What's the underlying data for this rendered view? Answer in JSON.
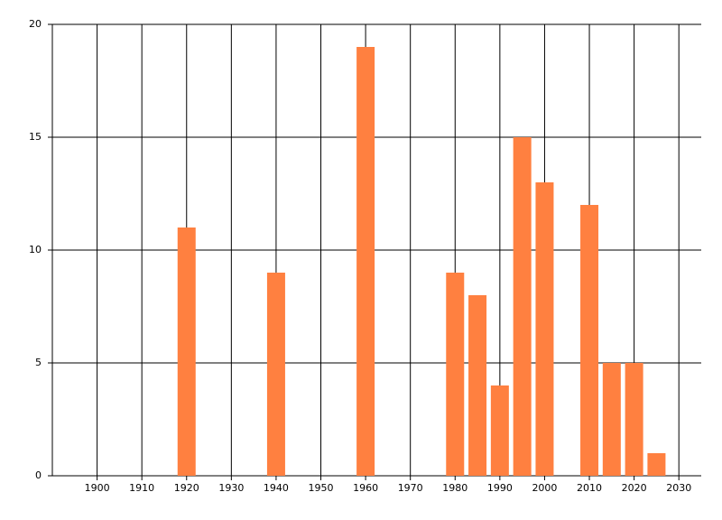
{
  "chart_data": {
    "type": "bar",
    "x": [
      1920,
      1940,
      1960,
      1980,
      1985,
      1990,
      1995,
      2000,
      2010,
      2015,
      2020,
      2025
    ],
    "values": [
      11,
      9,
      19,
      9,
      8,
      4,
      15,
      13,
      12,
      5,
      5,
      1
    ],
    "color": "#ff8040",
    "xlim": [
      1890,
      2035
    ],
    "xticks": [
      1900,
      1910,
      1920,
      1930,
      1940,
      1950,
      1960,
      1970,
      1980,
      1990,
      2000,
      2010,
      2020,
      2030
    ],
    "ylim": [
      0,
      20
    ],
    "yticks": [
      0,
      5,
      10,
      15,
      20
    ],
    "grid": true
  }
}
